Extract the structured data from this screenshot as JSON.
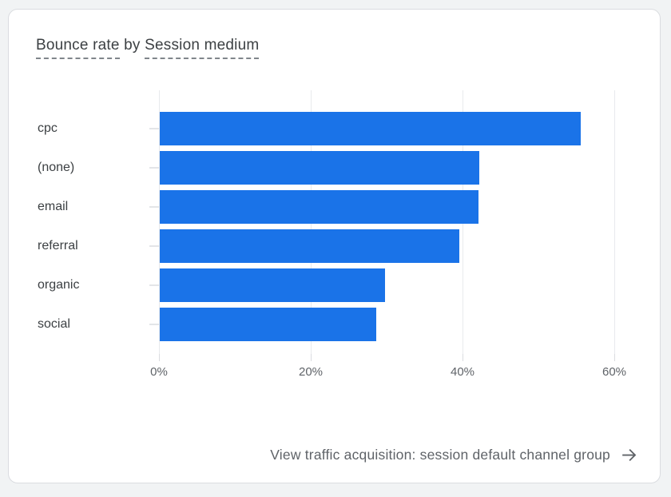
{
  "card": {
    "title": {
      "segment1": "Bounce rate",
      "connector": " by ",
      "segment2": "Session medium"
    },
    "footer": {
      "label": "View traffic acquisition: session default channel group",
      "icon": "arrow-forward"
    }
  },
  "colors": {
    "bar": "#1a73e8",
    "card_background": "#ffffff",
    "card_border": "#dadce0",
    "page_background": "#f1f3f4",
    "gridline": "#e8eaed",
    "tick": "#dadce0",
    "title_text": "#3c4043",
    "category_text": "#3c4043",
    "axis_text": "#5f6368",
    "footer_text": "#5f6368",
    "dashed_underline": "#80868b"
  },
  "chart_data": {
    "type": "bar",
    "orientation": "horizontal",
    "title": "Bounce rate by Session medium",
    "categories": [
      "cpc",
      "(none)",
      "email",
      "referral",
      "organic",
      "social"
    ],
    "values": [
      55.5,
      42.1,
      42.0,
      39.5,
      29.7,
      28.5
    ],
    "unit": "%",
    "x_ticks": [
      "0%",
      "20%",
      "40%",
      "60%"
    ],
    "x_tick_values": [
      0,
      20,
      40,
      60
    ],
    "xlim": [
      0,
      62
    ],
    "grid": true,
    "legend": "none",
    "bar_color": "#1a73e8"
  }
}
